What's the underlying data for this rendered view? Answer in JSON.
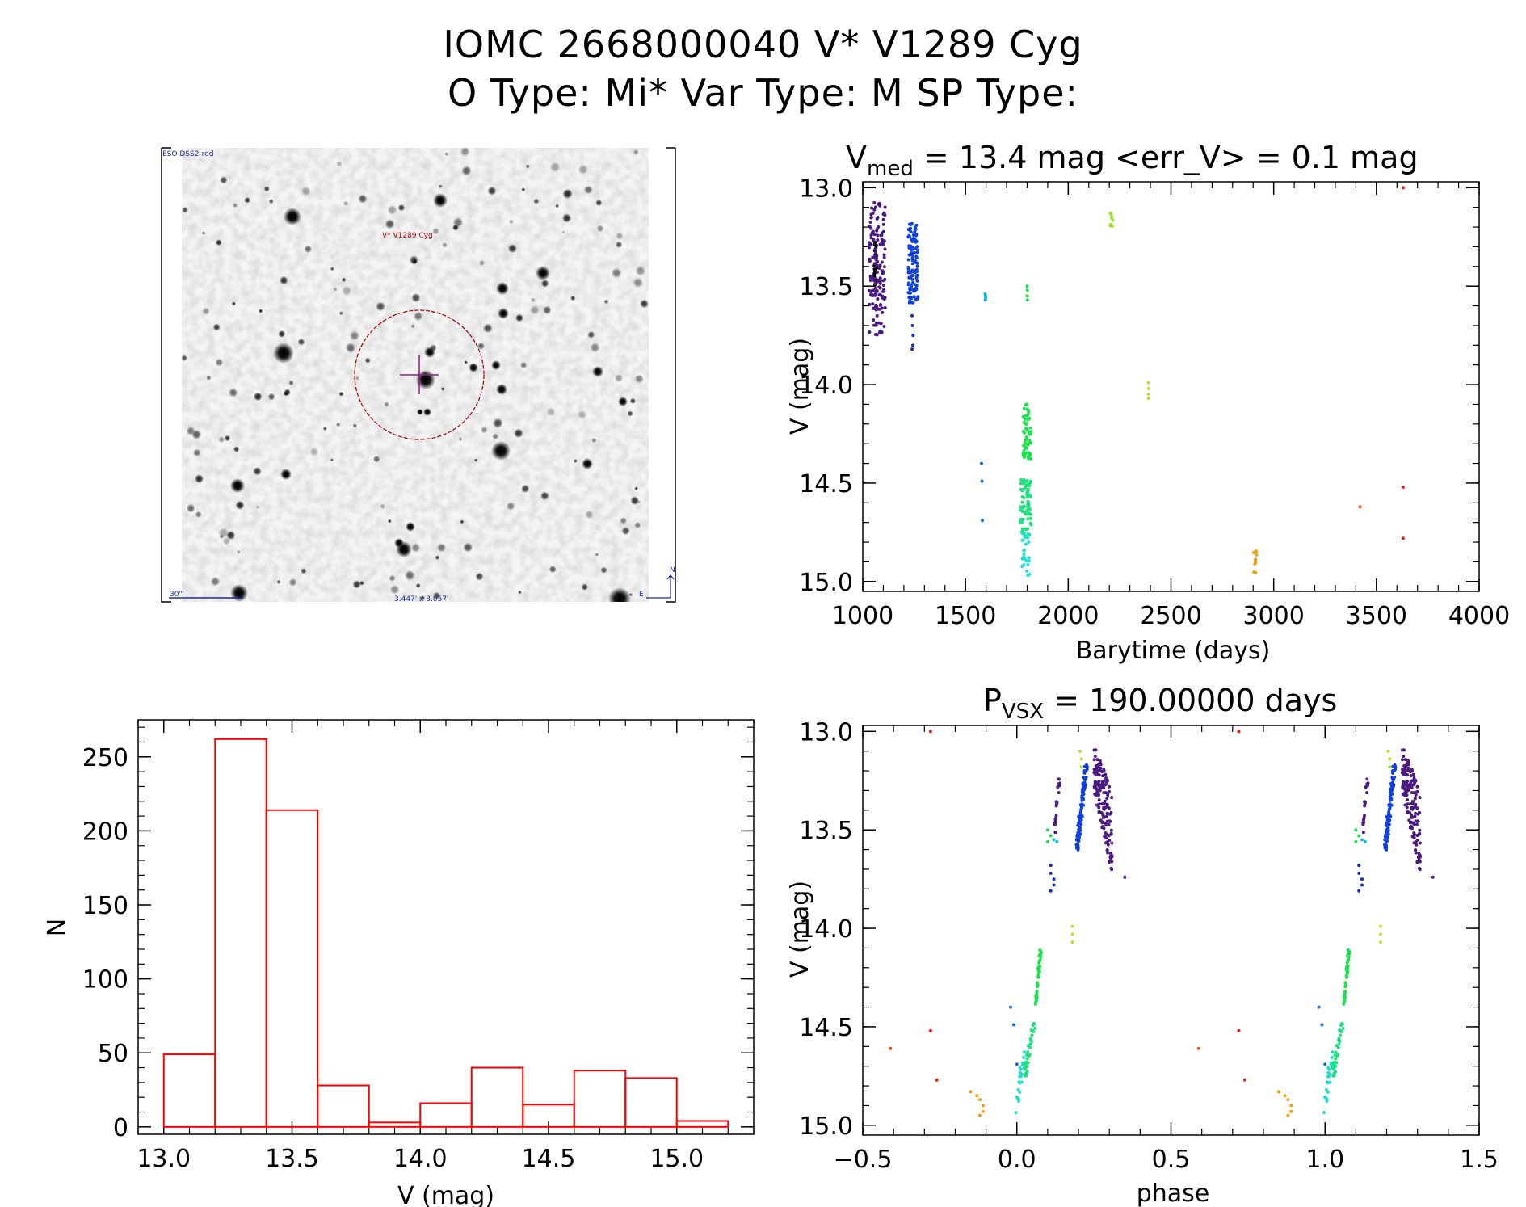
{
  "header": {
    "title_line1": "IOMC 2668000040    V* V1289 Cyg",
    "title_line2": "O Type: Mi*  Var Type: M  SP Type:"
  },
  "finder": {
    "survey_label": "ESO DSS2-red",
    "target_label": "V* V1289 Cyg",
    "scale_label": "30\"",
    "fov_label": "3.447' x 3.057'",
    "north_label": "N",
    "east_label": "E"
  },
  "chart_data": [
    {
      "type": "scatter",
      "id": "lightcurve",
      "title_main": "V",
      "title_sub": "med",
      "title_rest": " = 13.4 mag <err_V> = 0.1 mag",
      "xlabel": "Barytime (days)",
      "ylabel": "V (mag)",
      "xlim": [
        1000,
        4000
      ],
      "ylim": [
        15.05,
        12.97
      ],
      "xticks": [
        "1000",
        "1500",
        "2000",
        "2500",
        "3000",
        "3500",
        "4000"
      ],
      "yticks": [
        "13.0",
        "13.5",
        "14.0",
        "14.5",
        "15.0"
      ],
      "series": [
        {
          "name": "s1",
          "color": "#000000",
          "kind": "cluster",
          "x": 1060,
          "y0": 13.25,
          "y1": 13.5,
          "n": 22,
          "jit": 2
        },
        {
          "name": "s2",
          "color": "#4a1a80",
          "kind": "cluster",
          "x": 1070,
          "y0": 13.07,
          "y1": 13.75,
          "n": 150,
          "jit": 10
        },
        {
          "name": "s3",
          "color": "#1040e0",
          "kind": "cluster",
          "x": 1245,
          "y0": 13.18,
          "y1": 13.6,
          "n": 110,
          "jit": 6
        },
        {
          "name": "s4",
          "color": "#1030c0",
          "kind": "points",
          "x": [
            1240,
            1242,
            1245,
            1244,
            1240
          ],
          "y": [
            13.65,
            13.7,
            13.75,
            13.8,
            13.82
          ]
        },
        {
          "name": "s5",
          "color": "#10b8e8",
          "kind": "points",
          "x": [
            1595,
            1597,
            1598,
            1596
          ],
          "y": [
            13.54,
            13.55,
            13.56,
            13.57
          ]
        },
        {
          "name": "s6",
          "color": "#1070e0",
          "kind": "points",
          "x": [
            1578,
            1580,
            1582
          ],
          "y": [
            14.4,
            14.49,
            14.69
          ]
        },
        {
          "name": "s7",
          "color": "#20e050",
          "kind": "points",
          "x": [
            1800,
            1801,
            1800,
            1801
          ],
          "y": [
            13.5,
            13.52,
            13.55,
            13.57
          ]
        },
        {
          "name": "s8",
          "color": "#20e050",
          "kind": "cluster",
          "x": 1800,
          "y0": 14.1,
          "y1": 14.38,
          "n": 70,
          "jit": 5
        },
        {
          "name": "s9",
          "color": "#20e080",
          "kind": "cluster",
          "x": 1795,
          "y0": 14.48,
          "y1": 14.78,
          "n": 80,
          "jit": 7
        },
        {
          "name": "s10",
          "color": "#20e0d0",
          "kind": "cluster",
          "x": 1793,
          "y0": 14.75,
          "y1": 14.97,
          "n": 25,
          "jit": 5
        },
        {
          "name": "s11",
          "color": "#a0e030",
          "kind": "cluster",
          "x": 2210,
          "y0": 13.08,
          "y1": 13.2,
          "n": 8,
          "jit": 2
        },
        {
          "name": "s12",
          "color": "#c0e030",
          "kind": "points",
          "x": [
            2390,
            2391,
            2390,
            2391
          ],
          "y": [
            13.99,
            14.02,
            14.05,
            14.07
          ]
        },
        {
          "name": "s13",
          "color": "#f0a010",
          "kind": "cluster",
          "x": 2910,
          "y0": 14.84,
          "y1": 14.96,
          "n": 10,
          "jit": 2
        },
        {
          "name": "s14",
          "color": "#f05010",
          "kind": "points",
          "x": [
            3420
          ],
          "y": [
            14.62
          ]
        },
        {
          "name": "s15",
          "color": "#e02010",
          "kind": "points",
          "x": [
            3630,
            3630,
            3630
          ],
          "y": [
            13.0,
            14.52,
            14.78
          ]
        }
      ]
    },
    {
      "type": "bar",
      "id": "histogram",
      "title": "",
      "xlabel": "V (mag)",
      "ylabel": "N",
      "xlim": [
        12.9,
        15.3
      ],
      "ylim": [
        -5,
        275
      ],
      "xticks": [
        "13.0",
        "13.5",
        "14.0",
        "14.5",
        "15.0"
      ],
      "yticks": [
        "0",
        "50",
        "100",
        "150",
        "200",
        "250"
      ],
      "bin_edges": [
        13.0,
        13.2,
        13.4,
        13.6,
        13.8,
        14.0,
        14.2,
        14.4,
        14.6,
        14.8,
        15.0,
        15.2
      ],
      "values": [
        49,
        262,
        214,
        28,
        3,
        16,
        40,
        15,
        38,
        33,
        4
      ],
      "color": "#ff0000"
    },
    {
      "type": "scatter",
      "id": "phased",
      "title_main": "P",
      "title_sub": "VSX",
      "title_rest": " = 190.00000 days",
      "xlabel": "phase",
      "ylabel": "V (mag)",
      "xlim": [
        -0.5,
        1.5
      ],
      "ylim": [
        15.05,
        12.97
      ],
      "xticks": [
        "−0.5",
        "0.0",
        "0.5",
        "1.0",
        "1.5"
      ],
      "yticks": [
        "13.0",
        "13.5",
        "14.0",
        "14.5",
        "15.0"
      ],
      "series": [
        {
          "name": "p1",
          "color": "#e02010",
          "kind": "points",
          "x": [
            -0.28,
            -0.28,
            -0.26,
            0.72,
            0.72,
            0.74
          ],
          "y": [
            13.0,
            14.52,
            14.77,
            13.0,
            14.52,
            14.77
          ]
        },
        {
          "name": "p2",
          "color": "#f05010",
          "kind": "points",
          "x": [
            -0.41,
            0.59
          ],
          "y": [
            14.61,
            14.61
          ]
        },
        {
          "name": "p3",
          "color": "#f0a010",
          "kind": "points",
          "x": [
            -0.15,
            -0.13,
            -0.12,
            -0.11,
            -0.11,
            -0.12,
            0.85,
            0.87,
            0.88,
            0.89,
            0.89,
            0.88
          ],
          "y": [
            14.83,
            14.85,
            14.87,
            14.9,
            14.93,
            14.95,
            14.83,
            14.85,
            14.87,
            14.9,
            14.93,
            14.95
          ]
        },
        {
          "name": "p4",
          "color": "#20e0d0",
          "kind": "band",
          "x0": -0.01,
          "x1": 0.03,
          "y0": 14.6,
          "y1": 14.97,
          "n": 22
        },
        {
          "name": "p5",
          "color": "#20e080",
          "kind": "band",
          "x0": 0.02,
          "x1": 0.06,
          "y0": 14.48,
          "y1": 14.75,
          "n": 40
        },
        {
          "name": "p6",
          "color": "#20e050",
          "kind": "band",
          "x0": 0.06,
          "x1": 0.08,
          "y0": 14.1,
          "y1": 14.38,
          "n": 40
        },
        {
          "name": "p7",
          "color": "#1070e0",
          "kind": "points",
          "x": [
            -0.02,
            -0.01,
            0.0,
            0.98,
            0.99,
            1.0
          ],
          "y": [
            14.4,
            14.49,
            14.69,
            14.4,
            14.49,
            14.69
          ]
        },
        {
          "name": "p8",
          "color": "#20e050",
          "kind": "points",
          "x": [
            0.1,
            0.11,
            0.1,
            1.1,
            1.11,
            1.1
          ],
          "y": [
            13.5,
            13.53,
            13.56,
            13.5,
            13.53,
            13.56
          ]
        },
        {
          "name": "p9",
          "color": "#10b8e8",
          "kind": "points",
          "x": [
            0.12,
            0.13,
            1.12,
            1.13
          ],
          "y": [
            13.55,
            13.56,
            13.55,
            13.56
          ]
        },
        {
          "name": "p10",
          "color": "#1030c0",
          "kind": "points",
          "x": [
            0.11,
            0.11,
            0.12,
            0.12,
            0.11,
            1.11,
            1.11,
            1.12,
            1.12,
            1.11
          ],
          "y": [
            13.68,
            13.72,
            13.75,
            13.78,
            13.81,
            13.68,
            13.72,
            13.75,
            13.78,
            13.81
          ]
        },
        {
          "name": "p11",
          "color": "#4a1a80",
          "kind": "band",
          "x0": 0.12,
          "x1": 0.14,
          "y0": 13.25,
          "y1": 13.5,
          "n": 20
        },
        {
          "name": "p12",
          "color": "#1040e0",
          "kind": "band",
          "x0": 0.19,
          "x1": 0.23,
          "y0": 13.18,
          "y1": 13.6,
          "n": 90
        },
        {
          "name": "p13",
          "color": "#a0e030",
          "kind": "points",
          "x": [
            0.205,
            0.21,
            0.21,
            1.205,
            1.21,
            1.21
          ],
          "y": [
            13.1,
            13.14,
            13.18,
            13.1,
            13.14,
            13.18
          ]
        },
        {
          "name": "p14",
          "color": "#c0e030",
          "kind": "points",
          "x": [
            0.18,
            0.18,
            0.18,
            1.18,
            1.18,
            1.18
          ],
          "y": [
            13.99,
            14.03,
            14.07,
            13.99,
            14.03,
            14.07
          ]
        },
        {
          "name": "p15",
          "color": "#4a1a80",
          "kind": "slope",
          "x0": 0.25,
          "x1": 0.31,
          "ya0": 13.07,
          "ya1": 13.3,
          "yb0": 13.3,
          "yb1": 13.75,
          "n": 150
        },
        {
          "name": "p16",
          "color": "#4a1a80",
          "kind": "points",
          "x": [
            0.35,
            1.35
          ],
          "y": [
            13.74,
            13.74
          ]
        }
      ]
    }
  ]
}
